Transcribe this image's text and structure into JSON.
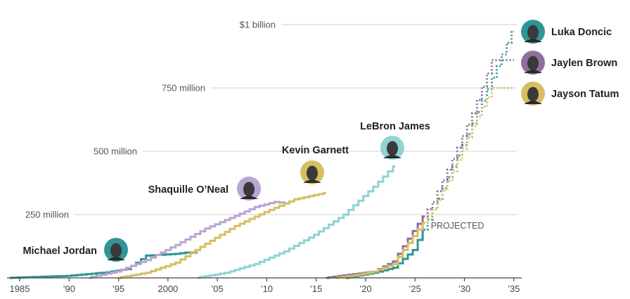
{
  "chart_data": {
    "type": "line",
    "title": "",
    "xlabel": "",
    "ylabel": "",
    "xlim": [
      1985,
      2035.8
    ],
    "ylim": [
      0,
      1000
    ],
    "y_ticks": [
      {
        "value": 250,
        "label": "250 million"
      },
      {
        "value": 500,
        "label": "500 million"
      },
      {
        "value": 750,
        "label": "750 million"
      },
      {
        "value": 1000,
        "label": "$1 billion"
      }
    ],
    "x_ticks": [
      {
        "value": 1985,
        "label": "1985"
      },
      {
        "value": 1990,
        "label": "’90"
      },
      {
        "value": 1995,
        "label": "’95"
      },
      {
        "value": 2000,
        "label": "2000"
      },
      {
        "value": 2005,
        "label": "’05"
      },
      {
        "value": 2010,
        "label": "’10"
      },
      {
        "value": 2015,
        "label": "’15"
      },
      {
        "value": 2020,
        "label": "’20"
      },
      {
        "value": 2025,
        "label": "’25"
      },
      {
        "value": 2030,
        "label": "’30"
      },
      {
        "value": 2035,
        "label": "’35"
      }
    ],
    "projection_label": "PROJECTED",
    "projection_start_year": 2026,
    "grid": true,
    "legend": "direct labels",
    "series": [
      {
        "name": "Michael Jordan",
        "color": "#2f9596",
        "x": [
          1984,
          1990,
          1992,
          1994,
          1996,
          1997,
          1998,
          2001,
          2002,
          2003
        ],
        "y": [
          0,
          8,
          15,
          22,
          35,
          60,
          88,
          95,
          100,
          100
        ]
      },
      {
        "name": "Shaquille O’Neal",
        "color": "#b9a6cf",
        "x": [
          1992,
          1995,
          1998,
          2001,
          2004,
          2007,
          2009,
          2011,
          2012
        ],
        "y": [
          0,
          25,
          70,
          130,
          195,
          245,
          280,
          300,
          295
        ]
      },
      {
        "name": "Kevin Garnett",
        "color": "#d7be62",
        "x": [
          1995,
          1998,
          2001,
          2004,
          2007,
          2010,
          2013,
          2016
        ],
        "y": [
          0,
          20,
          60,
          135,
          205,
          260,
          310,
          335
        ]
      },
      {
        "name": "LeBron James",
        "color": "#8fd3d3",
        "x": [
          2003,
          2006,
          2009,
          2012,
          2015,
          2018,
          2021,
          2023
        ],
        "y": [
          0,
          20,
          55,
          105,
          170,
          250,
          360,
          440
        ]
      },
      {
        "name": "Luka Doncic",
        "color": "#2f9596",
        "x": [
          2018,
          2021,
          2023,
          2025,
          2027,
          2029,
          2031,
          2033,
          2035
        ],
        "y": [
          0,
          20,
          40,
          110,
          270,
          440,
          610,
          790,
          975
        ]
      },
      {
        "name": "Jaylen Brown",
        "color": "#8e6f9f",
        "x": [
          2016,
          2018,
          2021,
          2023,
          2025,
          2027,
          2029,
          2031,
          2033,
          2035
        ],
        "y": [
          0,
          10,
          25,
          65,
          185,
          300,
          470,
          650,
          860,
          860
        ]
      },
      {
        "name": "Jayson Tatum",
        "color": "#d7be62",
        "x": [
          2017,
          2019,
          2021,
          2023,
          2025,
          2027,
          2029,
          2031,
          2033,
          2035
        ],
        "y": [
          0,
          10,
          25,
          55,
          165,
          270,
          420,
          600,
          750,
          750
        ]
      }
    ],
    "labels": [
      {
        "name": "Michael Jordan",
        "face_color": "#2f9596"
      },
      {
        "name": "Shaquille O’Neal",
        "face_color": "#b9a6cf"
      },
      {
        "name": "Kevin Garnett",
        "face_color": "#d7be62"
      },
      {
        "name": "LeBron James",
        "face_color": "#8fd3d3"
      },
      {
        "name": "Luka Doncic",
        "face_color": "#2f9596"
      },
      {
        "name": "Jaylen Brown",
        "face_color": "#8e6f9f"
      },
      {
        "name": "Jayson Tatum",
        "face_color": "#d7be62"
      }
    ]
  }
}
